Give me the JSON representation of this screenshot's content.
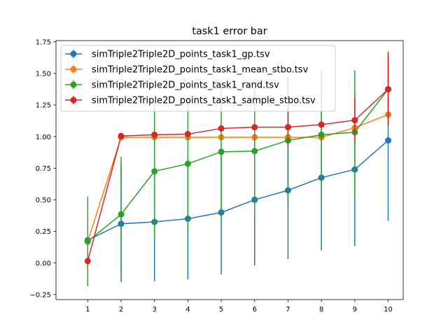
{
  "chart_data": {
    "type": "line",
    "title": "task1 error bar",
    "xlabel": "",
    "ylabel": "",
    "x": [
      1,
      2,
      3,
      4,
      5,
      6,
      7,
      8,
      9,
      10
    ],
    "xticks": [
      "1",
      "2",
      "3",
      "4",
      "5",
      "6",
      "7",
      "8",
      "9",
      "10"
    ],
    "xlim": [
      0.05,
      10.45
    ],
    "ylim": [
      -0.29,
      1.76
    ],
    "yticks": [
      -0.25,
      0.0,
      0.25,
      0.5,
      0.75,
      1.0,
      1.25,
      1.5,
      1.75
    ],
    "ytick_labels": [
      "−0.25",
      "0.00",
      "0.25",
      "0.50",
      "0.75",
      "1.00",
      "1.25",
      "1.50",
      "1.75"
    ],
    "grid": false,
    "legend_position": "upper-left",
    "series": [
      {
        "name": "simTriple2Triple2D_points_task1_gp.tsv",
        "color": "#1f77b4",
        "values": [
          0.18,
          0.31,
          0.325,
          0.35,
          0.4,
          0.5,
          0.575,
          0.675,
          0.74,
          0.97
        ],
        "errors": [
          0.0,
          0.46,
          0.47,
          0.48,
          0.49,
          0.52,
          0.545,
          0.575,
          0.605,
          0.635
        ]
      },
      {
        "name": "simTriple2Triple2D_points_task1_mean_stbo.tsv",
        "color": "#ff7f0e",
        "values": [
          0.17,
          0.995,
          0.995,
          0.995,
          0.995,
          0.995,
          0.995,
          0.995,
          1.07,
          1.175
        ],
        "errors": [
          0.0,
          0.0,
          0.0,
          0.0,
          0.0,
          0.0,
          0.0,
          0.0,
          0.0,
          0.0
        ]
      },
      {
        "name": "simTriple2Triple2D_points_task1_rand.tsv",
        "color": "#2ca02c",
        "values": [
          0.17,
          0.385,
          0.725,
          0.785,
          0.88,
          0.885,
          0.97,
          1.015,
          1.035,
          1.375
        ],
        "errors": [
          0.355,
          0.455,
          0.53,
          0.52,
          0.53,
          0.51,
          0.505,
          0.515,
          0.49,
          0.3
        ]
      },
      {
        "name": "simTriple2Triple2D_points_task1_sample_stbo.tsv",
        "color": "#d62728",
        "values": [
          0.015,
          1.005,
          1.015,
          1.02,
          1.065,
          1.075,
          1.075,
          1.095,
          1.13,
          1.375
        ],
        "errors": [
          0.0,
          0.0,
          0.0,
          0.0,
          0.0,
          0.0,
          0.155,
          0.0,
          0.18,
          0.285
        ]
      }
    ]
  }
}
